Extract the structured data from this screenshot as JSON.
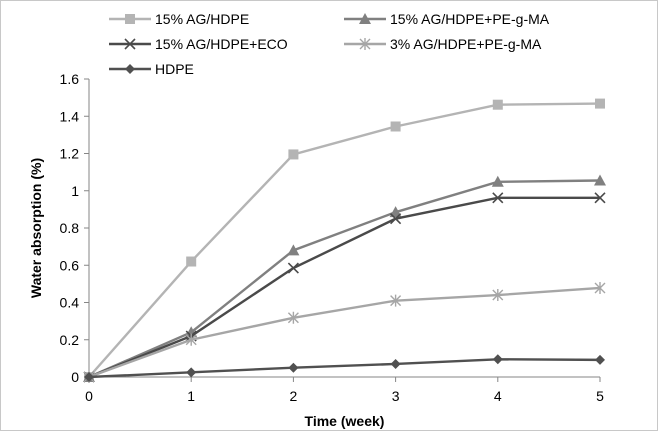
{
  "chart_data": {
    "type": "line",
    "title": "",
    "xlabel": "Time (week)",
    "ylabel": "Water absorption (%)",
    "x": [
      0,
      1,
      2,
      3,
      4,
      5
    ],
    "xlim": [
      0,
      5
    ],
    "ylim": [
      0,
      1.6
    ],
    "yticks": [
      "0",
      "0.2",
      "0.4",
      "0.6",
      "0.8",
      "1",
      "1.2",
      "1.4",
      "1.6"
    ],
    "xticks": [
      "0",
      "1",
      "2",
      "3",
      "4",
      "5"
    ],
    "grid": false,
    "legend_position": "top",
    "series": [
      {
        "name": "15% AG/HDPE",
        "marker": "square",
        "color": "#b4b4b4",
        "values": [
          0,
          0.62,
          1.195,
          1.345,
          1.462,
          1.468
        ]
      },
      {
        "name": "15% AG/HDPE+PE-g-MA",
        "marker": "triangle",
        "color": "#808080",
        "values": [
          0,
          0.24,
          0.68,
          0.885,
          1.048,
          1.055
        ]
      },
      {
        "name": "15% AG/HDPE+ECO",
        "marker": "x",
        "color": "#4a4a4a",
        "values": [
          0,
          0.22,
          0.585,
          0.85,
          0.962,
          0.962
        ]
      },
      {
        "name": "3% AG/HDPE+PE-g-MA",
        "marker": "star",
        "color": "#a6a6a6",
        "values": [
          0,
          0.2,
          0.318,
          0.41,
          0.44,
          0.478
        ]
      },
      {
        "name": "HDPE",
        "marker": "diamond",
        "color": "#505050",
        "values": [
          0,
          0.025,
          0.05,
          0.07,
          0.095,
          0.092
        ]
      }
    ]
  }
}
